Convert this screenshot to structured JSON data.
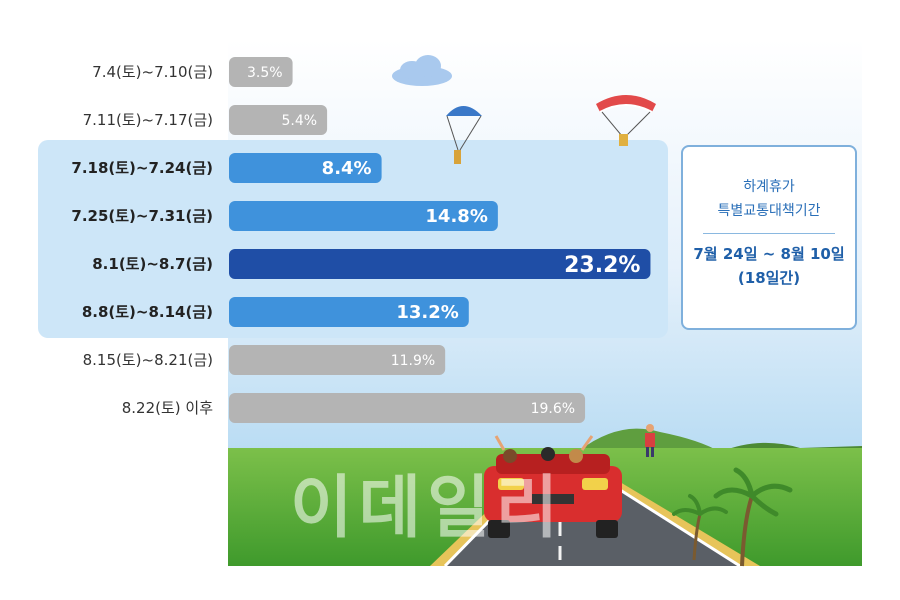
{
  "chart_data": {
    "type": "bar",
    "orientation": "horizontal",
    "title": "",
    "xlabel": "",
    "ylabel": "",
    "categories": [
      "7.4(토)~7.10(금)",
      "7.11(토)~7.17(금)",
      "7.18(토)~7.24(금)",
      "7.25(토)~7.31(금)",
      "8.1(토)~8.7(금)",
      "8.8(토)~8.14(금)",
      "8.15(토)~8.21(금)",
      "8.22(토) 이후"
    ],
    "values": [
      3.5,
      5.4,
      8.4,
      14.8,
      23.2,
      13.2,
      11.9,
      19.6
    ],
    "value_labels": [
      "3.5%",
      "5.4%",
      "8.4%",
      "14.8%",
      "23.2%",
      "13.2%",
      "11.9%",
      "19.6%"
    ],
    "xlim": [
      0,
      24
    ],
    "highlighted_categories": [
      2,
      3,
      4,
      5
    ],
    "peak_category": 4,
    "grid": false,
    "colors": {
      "normal": "#b4b4b4",
      "highlight": "#3f92dc",
      "peak": "#1f4ea6",
      "highlight_panel": "#cde6f8"
    }
  },
  "info_box": {
    "title_line1": "하계휴가",
    "title_line2": "특별교통대책기간",
    "period": "7월 24일 ~ 8월 10일",
    "days": "(18일간)"
  },
  "watermark": "이데일리"
}
